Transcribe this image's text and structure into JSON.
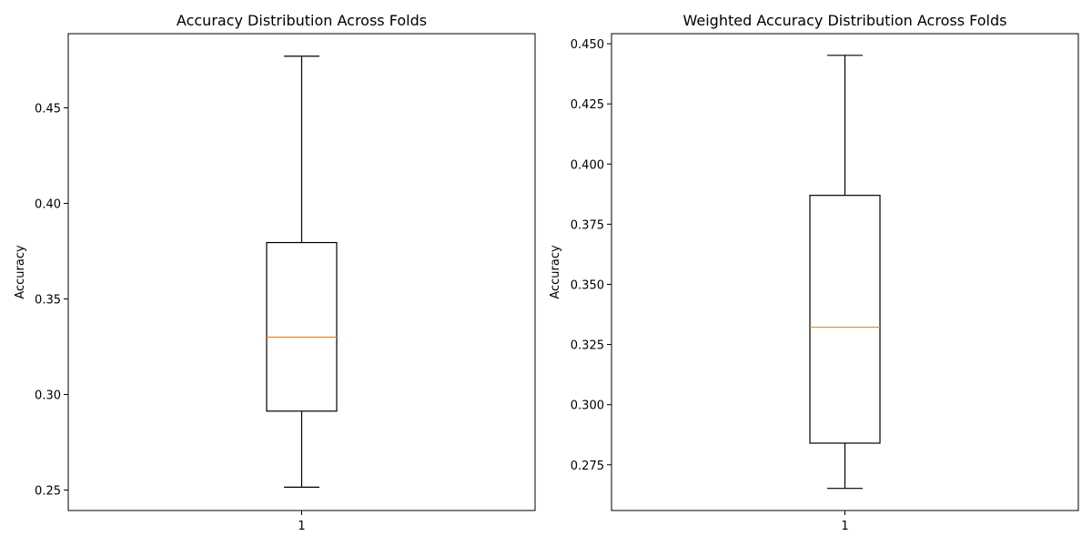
{
  "chart_data": [
    {
      "type": "box",
      "title": "Accuracy Distribution Across Folds",
      "ylabel": "Accuracy",
      "xlabel": "",
      "categories": [
        "1"
      ],
      "ylim": [
        0.2393,
        0.4888
      ],
      "yticks": [
        "0.25",
        "0.30",
        "0.35",
        "0.40",
        "0.45"
      ],
      "box": {
        "whisker_low": 0.2515,
        "q1": 0.2913,
        "median": 0.33,
        "q3": 0.3795,
        "whisker_high": 0.477
      },
      "colors": {
        "box": "#000000",
        "median": "#ff7f0e"
      }
    },
    {
      "type": "box",
      "title": "Weighted Accuracy Distribution Across Folds",
      "ylabel": "Accuracy",
      "xlabel": "",
      "categories": [
        "1"
      ],
      "ylim": [
        0.256,
        0.4542
      ],
      "yticks": [
        "0.275",
        "0.300",
        "0.325",
        "0.350",
        "0.375",
        "0.400",
        "0.425",
        "0.450"
      ],
      "box": {
        "whisker_low": 0.2652,
        "q1": 0.284,
        "median": 0.3322,
        "q3": 0.387,
        "whisker_high": 0.4452
      },
      "colors": {
        "box": "#000000",
        "median": "#ff7f0e"
      }
    }
  ]
}
